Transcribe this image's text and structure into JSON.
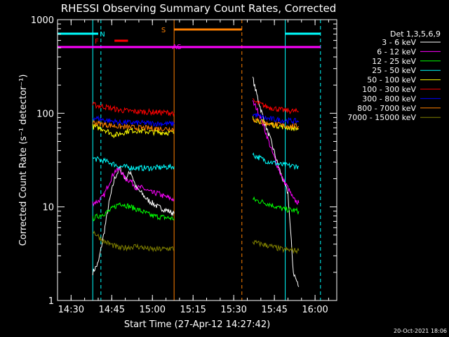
{
  "chart_data": {
    "type": "line",
    "title": "RHESSI Observing Summary Count Rates, Corrected",
    "xlabel": "Start Time (27-Apr-12 14:27:42)",
    "ylabel": "Corrected Count Rate (s⁻¹ detector⁻¹)",
    "xlim": [
      "14:25",
      "16:08"
    ],
    "ylim": [
      1,
      1000
    ],
    "yscale": "log",
    "x_ticks": [
      "14:30",
      "14:45",
      "15:00",
      "15:15",
      "15:30",
      "15:45",
      "16:00"
    ],
    "y_ticks": [
      {
        "value": 1,
        "label": "1"
      },
      {
        "value": 10,
        "label": "10"
      },
      {
        "value": 100,
        "label": "100"
      },
      {
        "value": 1000,
        "label": "1000"
      }
    ],
    "legend": {
      "placement": "right",
      "title": "Det 1,3,5,6,9"
    },
    "series": [
      {
        "name": "3 - 6 keV",
        "color": "#ffffff",
        "segments": [
          {
            "x": [
              "14:38",
              "14:40",
              "14:42",
              "14:44",
              "14:46",
              "14:48",
              "14:50",
              "14:52",
              "14:54",
              "14:56",
              "14:58",
              "15:00",
              "15:02",
              "15:04",
              "15:06",
              "15:08"
            ],
            "y": [
              2,
              2.5,
              5,
              11,
              20,
              26,
              20,
              24,
              16,
              14,
              12,
              11,
              10,
              9.5,
              9,
              8.5
            ]
          },
          {
            "x": [
              "15:37",
              "15:38",
              "15:40",
              "15:42",
              "15:44",
              "15:46",
              "15:48",
              "15:50",
              "15:52",
              "15:54"
            ],
            "y": [
              240,
              180,
              110,
              70,
              48,
              30,
              20,
              14,
              2,
              1.4
            ]
          }
        ]
      },
      {
        "name": "6 - 12 keV",
        "color": "#ff00ff",
        "segments": [
          {
            "x": [
              "14:38",
              "14:40",
              "14:42",
              "14:44",
              "14:46",
              "14:48",
              "14:50",
              "14:52",
              "14:54",
              "14:56",
              "14:58",
              "15:00",
              "15:02",
              "15:04",
              "15:06",
              "15:08"
            ],
            "y": [
              11,
              11.5,
              13,
              18,
              24,
              25,
              20,
              19,
              16,
              16,
              15,
              14,
              14,
              13,
              12.5,
              12
            ]
          },
          {
            "x": [
              "15:37",
              "15:38",
              "15:40",
              "15:42",
              "15:44",
              "15:46",
              "15:48",
              "15:50",
              "15:52",
              "15:54"
            ],
            "y": [
              130,
              120,
              90,
              60,
              40,
              28,
              20,
              16,
              12,
              11
            ]
          }
        ]
      },
      {
        "name": "12 - 25 keV",
        "color": "#00ff00",
        "segments": [
          {
            "x": [
              "14:38",
              "14:44",
              "14:48",
              "14:54",
              "15:00",
              "15:08"
            ],
            "y": [
              7.5,
              9,
              11,
              9.5,
              8,
              7.5
            ]
          },
          {
            "x": [
              "15:37",
              "15:42",
              "15:48",
              "15:54"
            ],
            "y": [
              12,
              11,
              9.5,
              9
            ]
          }
        ]
      },
      {
        "name": "25 - 50 keV",
        "color": "#00ffff",
        "segments": [
          {
            "x": [
              "14:38",
              "14:44",
              "14:48",
              "14:54",
              "15:00",
              "15:08"
            ],
            "y": [
              33,
              30,
              27,
              26,
              26,
              27
            ]
          },
          {
            "x": [
              "15:37",
              "15:42",
              "15:48",
              "15:54"
            ],
            "y": [
              36,
              31,
              28,
              27
            ]
          }
        ]
      },
      {
        "name": "50 - 100 keV",
        "color": "#ffff00",
        "segments": [
          {
            "x": [
              "14:38",
              "14:42",
              "14:46",
              "14:52",
              "15:00",
              "15:08"
            ],
            "y": [
              72,
              68,
              58,
              66,
              63,
              62
            ]
          },
          {
            "x": [
              "15:37",
              "15:42",
              "15:48",
              "15:54"
            ],
            "y": [
              88,
              78,
              72,
              68
            ]
          }
        ]
      },
      {
        "name": "100 - 300 keV",
        "color": "#ff0000",
        "segments": [
          {
            "x": [
              "14:38",
              "14:42",
              "14:48",
              "14:54",
              "15:00",
              "15:08"
            ],
            "y": [
              123,
              118,
              108,
              104,
              103,
              101
            ]
          },
          {
            "x": [
              "15:37",
              "15:42",
              "15:48",
              "15:54"
            ],
            "y": [
              135,
              118,
              108,
              104
            ]
          }
        ]
      },
      {
        "name": "300 - 800 keV",
        "color": "#0000ff",
        "segments": [
          {
            "x": [
              "14:38",
              "14:42",
              "14:48",
              "14:54",
              "15:00",
              "15:08"
            ],
            "y": [
              90,
              85,
              80,
              79,
              78,
              77
            ]
          },
          {
            "x": [
              "15:37",
              "15:42",
              "15:48",
              "15:54"
            ],
            "y": [
              98,
              88,
              84,
              82
            ]
          }
        ]
      },
      {
        "name": "800 - 7000 keV",
        "color": "#ff8000",
        "segments": [
          {
            "x": [
              "14:38",
              "14:42",
              "14:48",
              "14:54",
              "15:00",
              "15:08"
            ],
            "y": [
              80,
              76,
              72,
              70,
              69,
              68
            ]
          },
          {
            "x": [
              "15:37",
              "15:42",
              "15:48",
              "15:54"
            ],
            "y": [
              86,
              78,
              74,
              72
            ]
          }
        ]
      },
      {
        "name": "7000 - 15000 keV",
        "color": "#808000",
        "segments": [
          {
            "x": [
              "14:38",
              "14:42",
              "14:48",
              "14:54",
              "15:00",
              "15:08"
            ],
            "y": [
              5.5,
              4.3,
              3.6,
              3.8,
              3.5,
              3.6
            ]
          },
          {
            "x": [
              "15:37",
              "15:42",
              "15:48",
              "15:54"
            ],
            "y": [
              4.2,
              3.9,
              3.5,
              3.4
            ]
          }
        ]
      }
    ],
    "state_bars": [
      {
        "label": "N",
        "color": "#00ffff",
        "segments": [
          [
            "14:25",
            "14:40"
          ],
          [
            "15:49",
            "16:02"
          ]
        ]
      },
      {
        "label": "F",
        "color": "#ff0000",
        "segments": [
          [
            "14:46",
            "14:51"
          ]
        ]
      },
      {
        "label": "S",
        "color": "#ff8000",
        "segments": [
          [
            "15:08",
            "15:33"
          ]
        ]
      },
      {
        "label": "AS",
        "color": "#ff00ff",
        "segments": [
          [
            "14:25",
            "16:02"
          ]
        ]
      }
    ],
    "vlines": [
      {
        "x": "14:38",
        "color": "#00ffff",
        "style": "solid"
      },
      {
        "x": "14:41",
        "color": "#00ffff",
        "style": "dashed"
      },
      {
        "x": "15:08",
        "color": "#ff8000",
        "style": "solid"
      },
      {
        "x": "15:33",
        "color": "#ff8000",
        "style": "dashed"
      },
      {
        "x": "15:49",
        "color": "#00ffff",
        "style": "solid"
      },
      {
        "x": "16:02",
        "color": "#00ffff",
        "style": "dashed"
      }
    ],
    "footer": "20-Oct-2021 18:06"
  }
}
